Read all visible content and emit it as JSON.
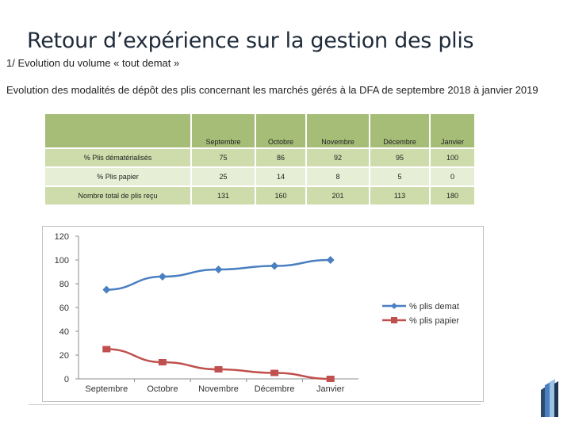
{
  "title": "Retour d’expérience sur la gestion des plis",
  "subtitle": "1/ Evolution du volume « tout demat »",
  "description": "Evolution des modalités de dépôt des plis concernant les marchés gérés à la DFA de septembre 2018 à janvier 2019",
  "table": {
    "headers": [
      "Septembre",
      "Octobre",
      "Novembre",
      "Décembre",
      "Janvier"
    ],
    "rows": [
      {
        "label": "% Plis dématérialisés",
        "values": [
          "75",
          "86",
          "92",
          "95",
          "100"
        ]
      },
      {
        "label": "% Plis papier",
        "values": [
          "25",
          "14",
          "8",
          "5",
          "0"
        ]
      },
      {
        "label": "Nombre total de plis reçu",
        "values": [
          "131",
          "160",
          "201",
          "113",
          "180"
        ]
      }
    ]
  },
  "chart_data": {
    "type": "line",
    "categories": [
      "Septembre",
      "Octobre",
      "Novembre",
      "Décembre",
      "Janvier"
    ],
    "series": [
      {
        "name": "% plis demat",
        "values": [
          75,
          86,
          92,
          95,
          100
        ],
        "color": "#4a7fc1",
        "marker": "diamond"
      },
      {
        "name": "% plis papier",
        "values": [
          25,
          14,
          8,
          5,
          0
        ],
        "color": "#c0504d",
        "marker": "square"
      }
    ],
    "yticks": [
      "0",
      "20",
      "40",
      "60",
      "80",
      "100",
      "120"
    ],
    "ylim": [
      0,
      120
    ],
    "legend": "right"
  }
}
